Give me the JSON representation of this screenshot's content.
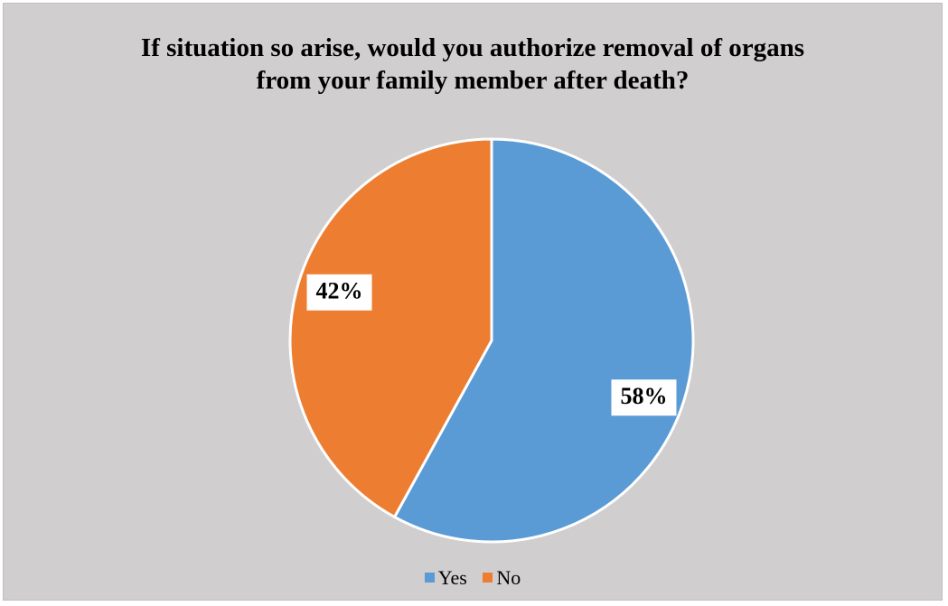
{
  "chart_data": {
    "type": "pie",
    "title_lines": [
      "If situation so arise, would you authorize removal of organs",
      "from your family member after death?"
    ],
    "slices": [
      {
        "name": "Yes",
        "value": 58,
        "label": "58%",
        "color": "#5b9bd5"
      },
      {
        "name": "No",
        "value": 42,
        "label": "42%",
        "color": "#ed7d31"
      }
    ],
    "legend_position": "bottom",
    "background_color": "#d0cece"
  }
}
